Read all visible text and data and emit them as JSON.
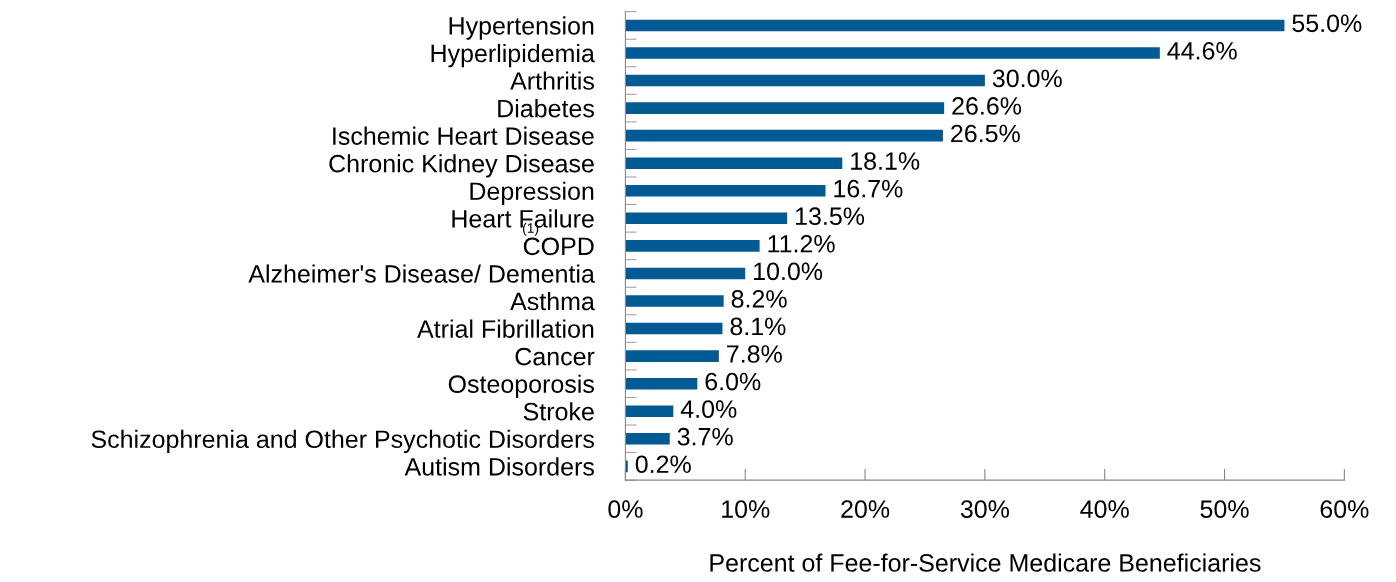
{
  "chart_data": {
    "type": "bar",
    "orientation": "horizontal",
    "xlabel": "Percent of Fee-for-Service Medicare Beneficiaries",
    "categories": [
      "Hypertension",
      "Hyperlipidemia",
      "Arthritis",
      "Diabetes",
      "Ischemic Heart Disease",
      "Chronic Kidney Disease",
      "Depression",
      "Heart Failure",
      "COPD",
      "Alzheimer's Disease/ Dementia",
      "Asthma",
      "Atrial Fibrillation",
      "Cancer",
      "Osteoporosis",
      "Stroke",
      "Schizophrenia and Other Psychotic Disorders",
      "Autism Disorders"
    ],
    "values": [
      55.0,
      44.6,
      30.0,
      26.6,
      26.5,
      18.1,
      16.7,
      13.5,
      11.2,
      10.0,
      8.2,
      8.1,
      7.8,
      6.0,
      4.0,
      3.7,
      0.2
    ],
    "value_labels": [
      "55.0%",
      "44.6%",
      "30.0%",
      "26.6%",
      "26.5%",
      "18.1%",
      "16.7%",
      "13.5%",
      "11.2%",
      "10.0%",
      "8.2%",
      "8.1%",
      "7.8%",
      "6.0%",
      "4.0%",
      "3.7%",
      "0.2%"
    ],
    "color": "#005a94",
    "xlim": [
      0,
      60
    ],
    "xticks": [
      {
        "value": 0,
        "label": "0%"
      },
      {
        "value": 10,
        "label": "10%"
      },
      {
        "value": 20,
        "label": "20%"
      },
      {
        "value": 30,
        "label": "30%"
      },
      {
        "value": 40,
        "label": "40%"
      },
      {
        "value": 50,
        "label": "50%"
      },
      {
        "value": 60,
        "label": "60%"
      }
    ],
    "grid": false,
    "legend": false,
    "annotations": [
      "(1)"
    ]
  }
}
